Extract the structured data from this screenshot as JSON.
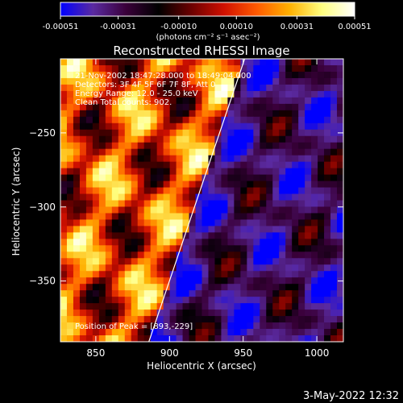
{
  "chart_data": {
    "type": "heatmap",
    "title": "Reconstructed RHESSI Image",
    "xlabel": "Heliocentric X (arcsec)",
    "ylabel": "Heliocentric Y (arcsec)",
    "xlim": [
      826,
      1018
    ],
    "ylim": [
      -391,
      -200
    ],
    "x_ticks": [
      850,
      900,
      950,
      1000
    ],
    "y_ticks": [
      -250,
      -300,
      -350
    ],
    "colorbar": {
      "min": -0.00051,
      "max": 0.00051,
      "tick_labels": [
        "-0.00051",
        "-0.00031",
        "-0.00010",
        "0.00010",
        "0.00031",
        "0.00051"
      ],
      "unit_label": "(photons cm⁻² s⁻¹ asec⁻²)",
      "colors": [
        "#0000ff",
        "#5a2aa0",
        "#3a003a",
        "#000000",
        "#6b0000",
        "#d01000",
        "#ff5a00",
        "#ffb000",
        "#ffff80",
        "#ffffff"
      ]
    },
    "info_lines": [
      "21-Nov-2002 18:47:28.000 to 18:49:04.000",
      "Detectors: 3F 4F 5F 6F 7F 8F, Att 0",
      "Energy Range: 12.0 - 25.0 keV",
      "Clean     Total counts: 902."
    ],
    "peak_label": "Position of Peak = [893,-229]",
    "limb_line": {
      "x": [
        886,
        951
      ],
      "y": [
        -391,
        -200
      ]
    }
  },
  "footer": {
    "timestamp": "3-May-2022 12:32"
  }
}
